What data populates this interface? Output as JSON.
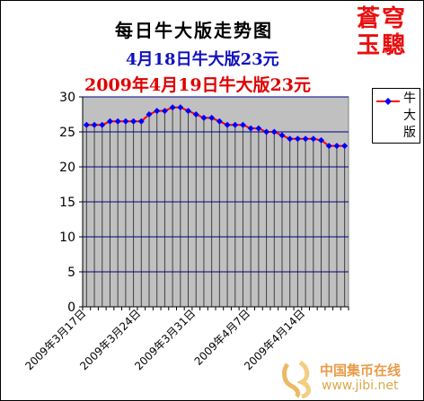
{
  "header": {
    "title": "每日牛大版走势图",
    "subtitle1": "4月18日牛大版23元",
    "subtitle2": "2009年4月19日牛大版23元",
    "seal_line1": "蒼穹",
    "seal_line2": "玉驄"
  },
  "legend": {
    "label": "牛大版"
  },
  "watermark": {
    "text1": "中国集币在线",
    "text2": "www.jibi.net"
  },
  "colors": {
    "plot_bg": "#c0c0c0",
    "line": "#ff0000",
    "marker": "#0000ff",
    "grid": "#000080",
    "seal": "#e81010",
    "subtitle1": "#1010c0",
    "subtitle2": "#e00000"
  },
  "chart_data": {
    "type": "line",
    "title": "每日牛大版走势图",
    "xlabel": "",
    "ylabel": "",
    "ylim": [
      0,
      30
    ],
    "yticks": [
      0,
      5,
      10,
      15,
      20,
      25,
      30
    ],
    "x_tick_labels": [
      "2009年3月17日",
      "2009年3月24日",
      "2009年3月31日",
      "2009年4月7日",
      "2009年4月14日"
    ],
    "x_tick_indices": [
      0,
      7,
      14,
      21,
      28
    ],
    "grid": true,
    "legend_position": "right",
    "series": [
      {
        "name": "牛大版",
        "x": [
          "2009年3月17日",
          "2009年3月18日",
          "2009年3月19日",
          "2009年3月20日",
          "2009年3月21日",
          "2009年3月22日",
          "2009年3月23日",
          "2009年3月24日",
          "2009年3月25日",
          "2009年3月26日",
          "2009年3月27日",
          "2009年3月28日",
          "2009年3月29日",
          "2009年3月30日",
          "2009年3月31日",
          "2009年4月1日",
          "2009年4月2日",
          "2009年4月3日",
          "2009年4月4日",
          "2009年4月5日",
          "2009年4月6日",
          "2009年4月7日",
          "2009年4月8日",
          "2009年4月9日",
          "2009年4月10日",
          "2009年4月11日",
          "2009年4月12日",
          "2009年4月13日",
          "2009年4月14日",
          "2009年4月15日",
          "2009年4月16日",
          "2009年4月17日",
          "2009年4月18日",
          "2009年4月19日"
        ],
        "values": [
          26,
          26,
          26,
          26.5,
          26.5,
          26.5,
          26.5,
          26.5,
          27.5,
          28,
          28,
          28.5,
          28.5,
          28,
          27.5,
          27,
          27,
          26.5,
          26,
          26,
          26,
          25.5,
          25.5,
          25,
          25,
          24.5,
          24,
          24,
          24,
          24,
          23.8,
          23,
          23,
          23
        ]
      }
    ]
  }
}
